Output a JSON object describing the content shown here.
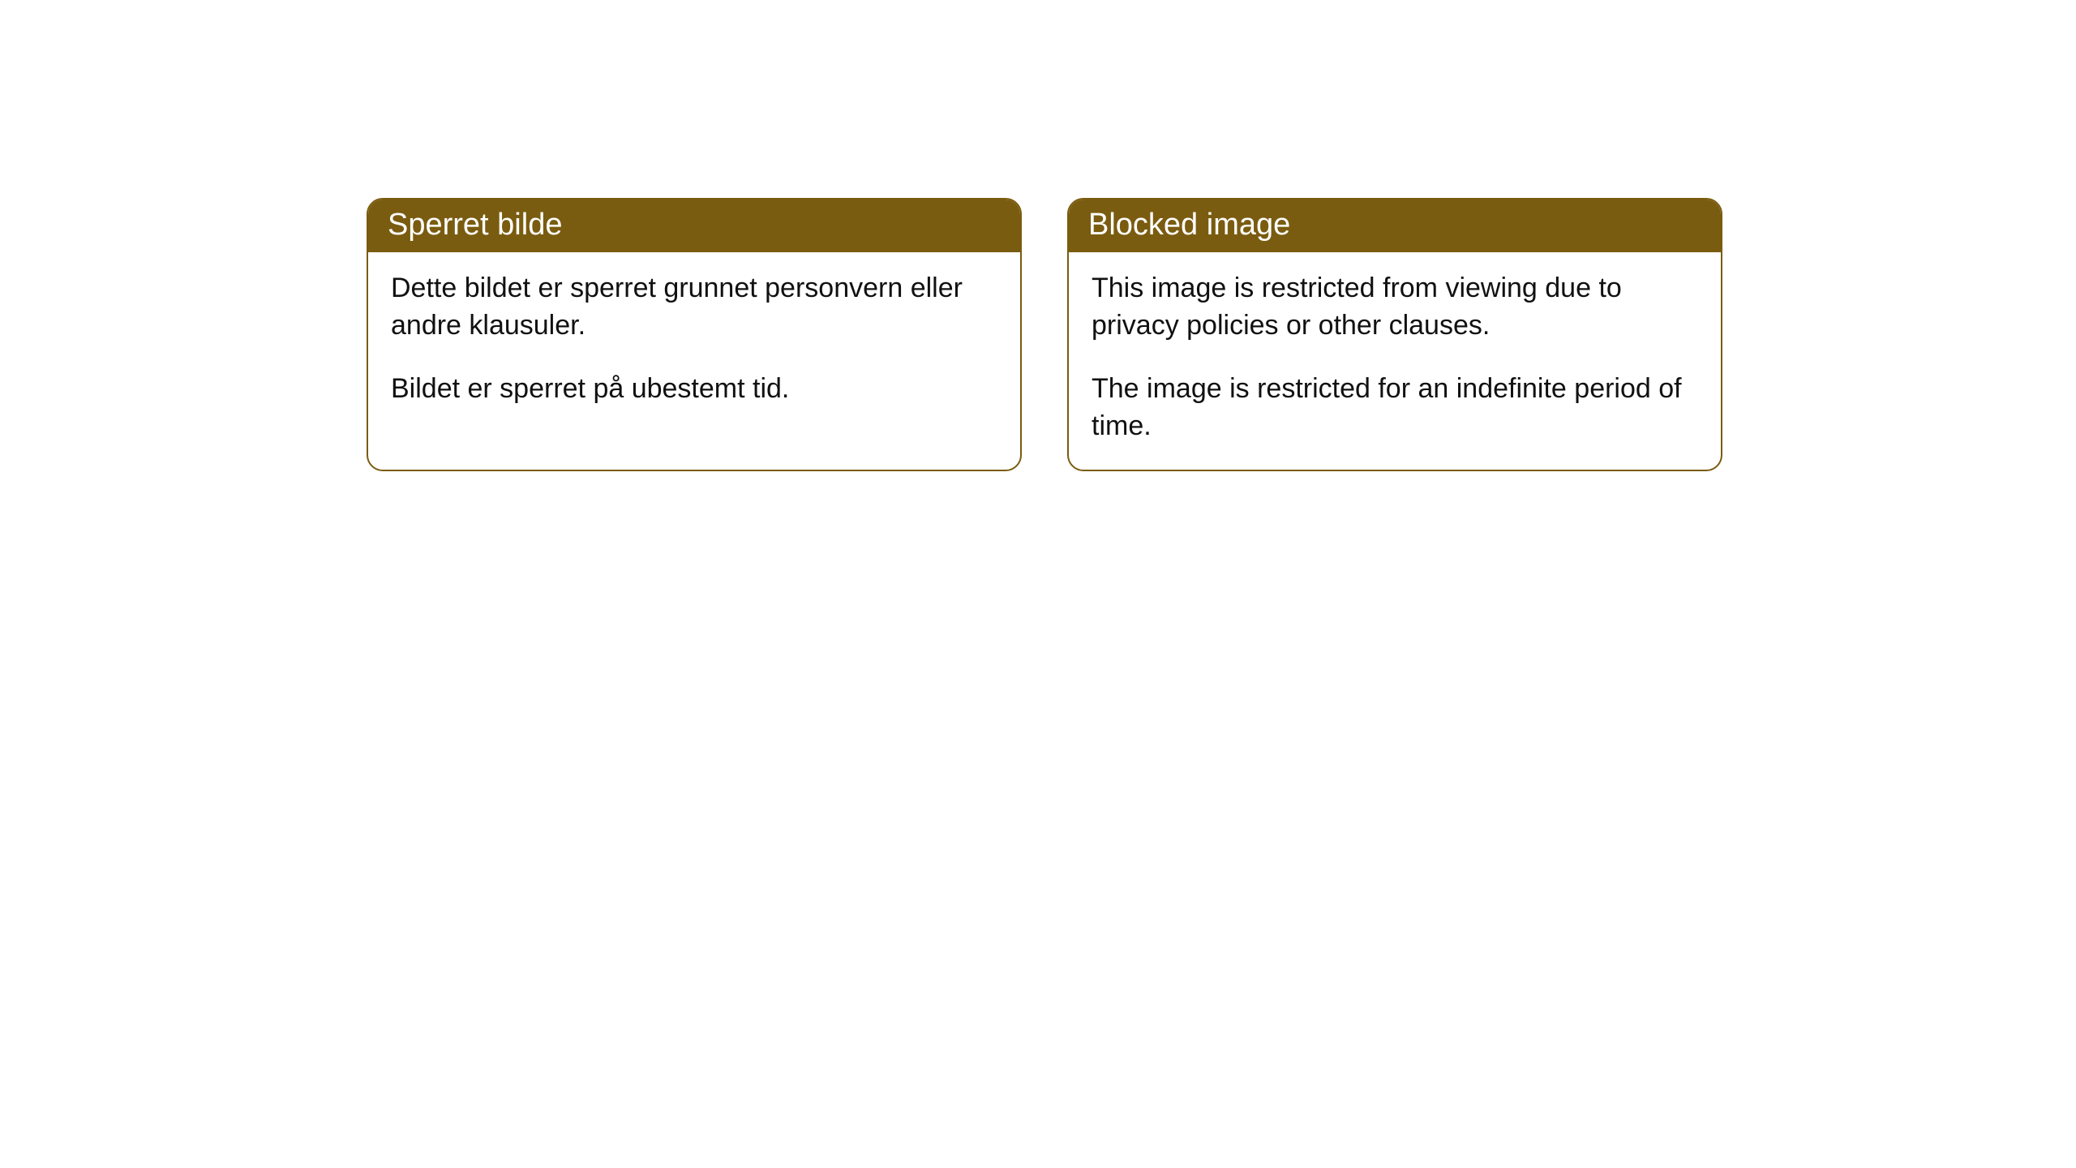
{
  "cards": [
    {
      "title": "Sperret bilde",
      "paragraph1": "Dette bildet er sperret grunnet personvern eller andre klausuler.",
      "paragraph2": "Bildet er sperret på ubestemt tid."
    },
    {
      "title": "Blocked image",
      "paragraph1": "This image is restricted from viewing due to privacy policies or other clauses.",
      "paragraph2": "The image is restricted for an indefinite period of time."
    }
  ],
  "style": {
    "header_bg": "#7a5c10",
    "header_text_color": "#ffffff",
    "border_color": "#7a5c10",
    "body_bg": "#ffffff",
    "body_text_color": "#111111",
    "border_radius": 20,
    "header_fontsize": 38,
    "body_fontsize": 34
  }
}
